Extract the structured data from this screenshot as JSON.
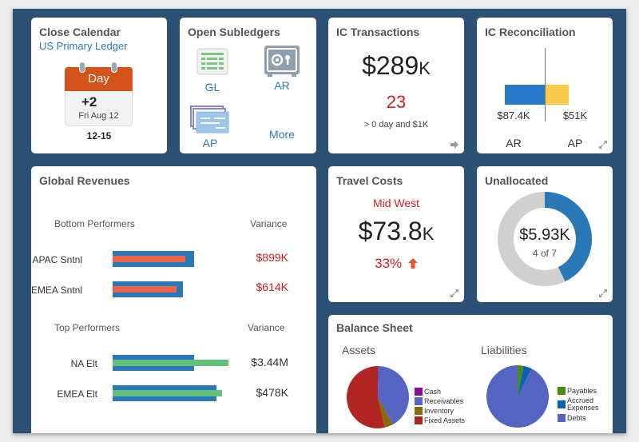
{
  "close_calendar": {
    "title": "Close Calendar",
    "ledger": "US Primary Ledger",
    "day_label": "Day",
    "day_offset": "+2",
    "date": "Fri Aug 12",
    "range": "12-15",
    "colors": {
      "header": "#d4531b"
    }
  },
  "open_subledgers": {
    "title": "Open Subledgers",
    "items": [
      {
        "label": "GL",
        "icon": "ledger-grid-icon"
      },
      {
        "label": "AR",
        "icon": "safe-icon"
      },
      {
        "label": "AP",
        "icon": "stacked-checks-icon"
      },
      {
        "label": "More",
        "icon": ""
      }
    ]
  },
  "ic_transactions": {
    "title": "IC Transactions",
    "amount": "$289",
    "amount_unit": "K",
    "count": "23",
    "criteria": "> 0 day and $1K",
    "nav_icon": "arrow-right-icon"
  },
  "ic_reconciliation": {
    "title": "IC Reconciliation",
    "ar_value": "$87.4K",
    "ap_value": "$51K",
    "ar_label": "AR",
    "ap_label": "AP",
    "ar_amount": 87.4,
    "ap_amount": 51,
    "colors": {
      "ar": "#2a79c9",
      "ap": "#f8cb4a"
    }
  },
  "global_revenues": {
    "title": "Global Revenues",
    "bottom": {
      "header": "Bottom Performers",
      "variance_header": "Variance",
      "rows": [
        {
          "name": "APAC Sntnl",
          "variance": "$899K",
          "target": 1.0,
          "actual": 0.89
        },
        {
          "name": "EMEA Sntnl",
          "variance": "$614K",
          "target": 0.86,
          "actual": 0.78
        }
      ]
    },
    "top": {
      "header": "Top Performers",
      "variance_header": "Variance",
      "rows": [
        {
          "name": "NA Elt",
          "variance": "$3.44M",
          "target": 1.0,
          "actual": 1.42
        },
        {
          "name": "EMEA Elt",
          "variance": "$478K",
          "target": 1.27,
          "actual": 1.34
        }
      ]
    },
    "colors": {
      "target": "#2a79b6",
      "bottom_actual": "#ec6349",
      "top_actual": "#63c27a",
      "variance_bad": "#d32020"
    }
  },
  "travel_costs": {
    "title": "Travel Costs",
    "region": "Mid West",
    "amount": "$73.8",
    "amount_unit": "K",
    "change": "33%",
    "trend_icon": "arrow-up-icon"
  },
  "unallocated": {
    "title": "Unallocated",
    "amount": "$5.93K",
    "count": "4 of 7",
    "fraction": 0.4286,
    "colors": {
      "filled": "#2a79b6",
      "empty": "#d0d0d0"
    }
  },
  "balance_sheet": {
    "title": "Balance Sheet",
    "assets": {
      "title": "Assets",
      "slices": [
        {
          "label": "Cash",
          "value": 0.3,
          "color": "#8b0f9b"
        },
        {
          "label": "Receivables",
          "value": 41.7,
          "color": "#5664c2"
        },
        {
          "label": "Inventory",
          "value": 4.5,
          "color": "#8b6a07"
        },
        {
          "label": "Fixed Assets",
          "value": 53.5,
          "color": "#b02421"
        }
      ]
    },
    "liabilities": {
      "title": "Liabilities",
      "slices": [
        {
          "label": "Payables",
          "value": 3,
          "color": "#4e8a10"
        },
        {
          "label": "Accrued Expenses",
          "value": 4.5,
          "color": "#0a62b5"
        },
        {
          "label": "Debts",
          "value": 92.5,
          "color": "#5664c2"
        }
      ]
    }
  }
}
